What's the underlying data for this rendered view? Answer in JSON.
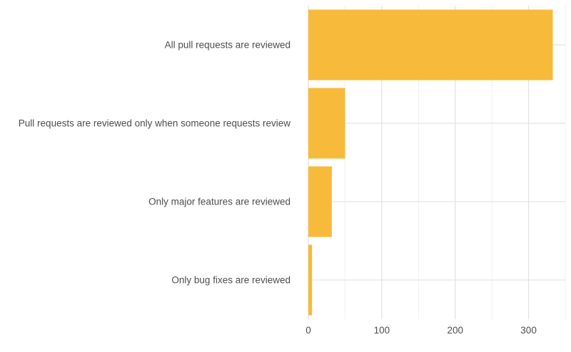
{
  "chart_data": {
    "type": "bar",
    "orientation": "horizontal",
    "categories": [
      "All pull requests are reviewed",
      "Pull requests are reviewed only when someone requests review",
      "Only major features are reviewed",
      "Only bug fixes are reviewed"
    ],
    "values": [
      333,
      50,
      32,
      5
    ],
    "xlim": [
      0,
      350
    ],
    "xticks": [
      0,
      100,
      200,
      300
    ],
    "xtick_labels": [
      "0",
      "100",
      "200",
      "300"
    ],
    "title": "",
    "xlabel": "",
    "ylabel": "",
    "grid": true,
    "legend": "none",
    "colors": {
      "bar": "#F7BA3A",
      "grid_major": "#e3e3e3",
      "grid_minor": "#efefef",
      "text": "#4d4d4d"
    }
  }
}
